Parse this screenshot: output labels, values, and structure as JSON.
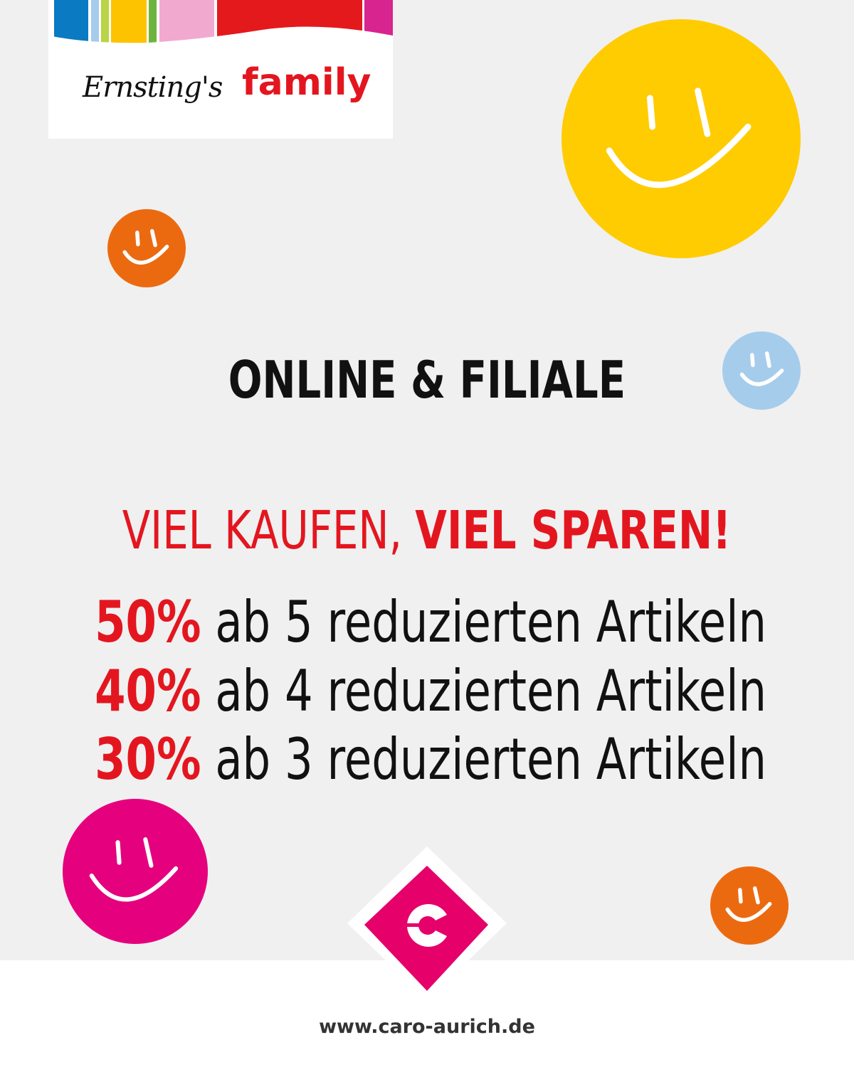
{
  "logo": {
    "brand_script": "Ernsting's",
    "brand_word": "family"
  },
  "headline": "ONLINE & FILIALE",
  "slogan": {
    "part1": "VIEL KAUFEN,",
    "part2": "VIEL SPAREN!"
  },
  "offers": [
    {
      "percent": "50%",
      "text": "ab 5 reduzierten Artikeln"
    },
    {
      "percent": "40%",
      "text": "ab 4 reduzierten Artikeln"
    },
    {
      "percent": "30%",
      "text": "ab 3 reduzierten Artikeln"
    }
  ],
  "footer": {
    "url": "www.caro-aurich.de"
  },
  "colors": {
    "red": "#e3161f",
    "yellow": "#fecc00",
    "orange": "#ec6a0f",
    "light_blue": "#a6ccec",
    "magenta": "#e5007e",
    "background": "#f0f0f0"
  },
  "icons": [
    "smiley-icon",
    "caro-c-logo-icon"
  ]
}
